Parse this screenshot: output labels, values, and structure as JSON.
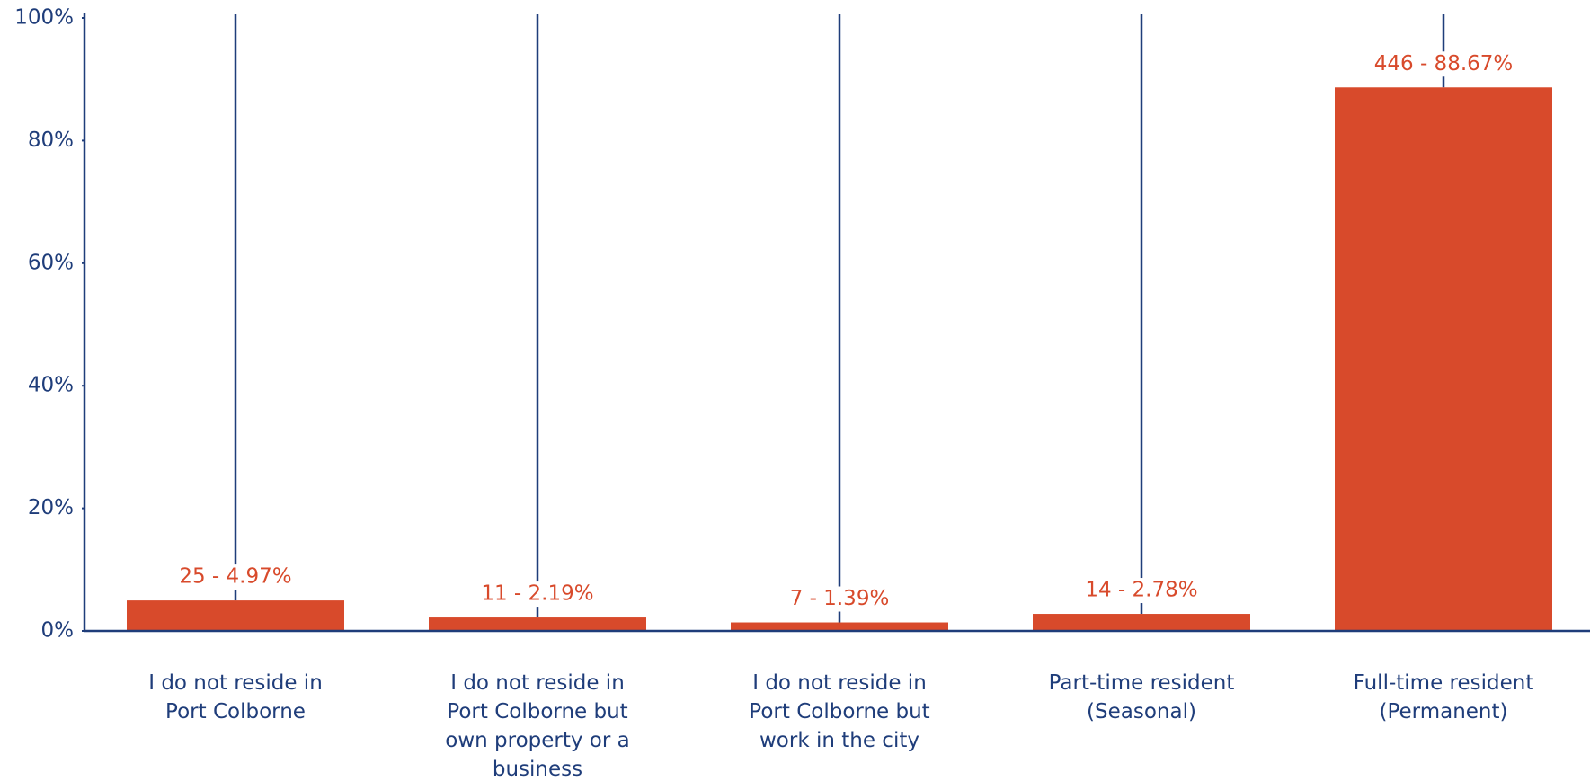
{
  "chart_data": {
    "type": "bar",
    "categories": [
      "I do not reside in Port Colborne",
      "I do not reside in Port Colborne but own property or a business",
      "I do not reside in Port Colborne but work in the city",
      "Part-time resident (Seasonal)",
      "Full-time resident (Permanent)"
    ],
    "values": [
      4.97,
      2.19,
      1.39,
      2.78,
      88.67
    ],
    "value_labels": [
      "25 - 4.97%",
      "11 - 2.19%",
      "7 - 1.39%",
      "14 - 2.78%",
      "446 - 88.67%"
    ],
    "color": "#d84a2b",
    "ylim": [
      0,
      100
    ],
    "yticks": [
      {
        "value": 0,
        "label": "0%"
      },
      {
        "value": 20,
        "label": "20%"
      },
      {
        "value": 40,
        "label": "40%"
      },
      {
        "value": 60,
        "label": "60%"
      },
      {
        "value": 80,
        "label": "80%"
      },
      {
        "value": 100,
        "label": "100%"
      }
    ],
    "grid": false
  }
}
